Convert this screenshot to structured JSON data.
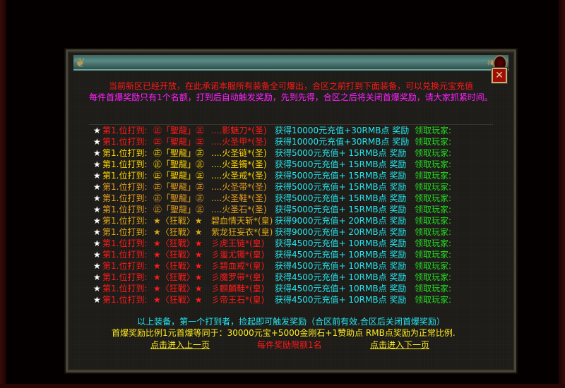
{
  "header": {
    "close_icon": "close-x-icon"
  },
  "notice": {
    "line1": "当前新区已经开放，在此承诺本服所有装备全可爆出，合区之前打到下面装备，可以兑换元宝充值",
    "line2": "每件首爆奖励只有1个名额，打到后自动触发奖励，先到先得，合区之后将关闭首爆奖励，请大家抓紧时间。"
  },
  "colors": {
    "red": "#ff1a1a",
    "yellow": "#ffd700",
    "orange": "#e8a020",
    "gold": "#e0a818",
    "cyan": "#22e6f0",
    "green": "#22dd22",
    "magenta": "#ff20ff"
  },
  "rows": [
    {
      "star": "★",
      "pos": "第1.位打到:",
      "tag": "㊣「聖龍」㊣",
      "item": "....影魅刀*(圣)",
      "reward": "获得10000元充值+30RMB点 奖励",
      "claim": "领取玩家:",
      "color": "#ff1a1a"
    },
    {
      "star": "★",
      "pos": "第1.位打到:",
      "tag": "㊣「聖龍」㊣",
      "item": "....火圣甲*(圣)",
      "reward": "获得10000元充值+30RMB点 奖励",
      "claim": "领取玩家:",
      "color": "#ff1a1a"
    },
    {
      "star": "★",
      "pos": "第1.位打到:",
      "tag": "㊣「聖龍」㊣",
      "item": "....火圣链*(圣)",
      "reward": "获得5000元充值+ 15RMB点 奖励",
      "claim": "领取玩家:",
      "color": "#ffd700"
    },
    {
      "star": "★",
      "pos": "第1.位打到:",
      "tag": "㊣「聖龍」㊣",
      "item": "....火圣镯*(圣)",
      "reward": "获得5000元充值+ 15RMB点 奖励",
      "claim": "领取玩家:",
      "color": "#ffd700"
    },
    {
      "star": "★",
      "pos": "第1.位打到:",
      "tag": "㊣「聖龍」㊣",
      "item": "....火圣戒*(圣)",
      "reward": "获得5000元充值+ 15RMB点 奖励",
      "claim": "领取玩家:",
      "color": "#ffd700"
    },
    {
      "star": "★",
      "pos": "第1.位打到:",
      "tag": "㊣「聖龍」㊣",
      "item": "....火圣带*(圣)",
      "reward": "获得5000元充值+ 15RMB点 奖励",
      "claim": "领取玩家:",
      "color": "#e8a020"
    },
    {
      "star": "★",
      "pos": "第1.位打到:",
      "tag": "㊣「聖龍」㊣",
      "item": "....火圣鞋*(圣)",
      "reward": "获得5000元充值+ 15RMB点 奖励",
      "claim": "领取玩家:",
      "color": "#e8a020"
    },
    {
      "star": "★",
      "pos": "第1.位打到:",
      "tag": "㊣「聖龍」㊣",
      "item": "....火圣石*(圣)",
      "reward": "获得5000元充值+ 15RMB点 奖励",
      "claim": "领取玩家:",
      "color": "#e8a020"
    },
    {
      "star": "★",
      "pos": "第1.位打到:",
      "tag": "★〈狂戰〉★",
      "item": "碧血情天斩*(皇)",
      "reward": "获得9000元充值+ 20RMB点 奖励",
      "claim": "领取玩家:",
      "color": "#e0a818"
    },
    {
      "star": "★",
      "pos": "第1.位打到:",
      "tag": "★〈狂戰〉★",
      "item": "紫龙狂妄衣*(皇)",
      "reward": "获得9000元充值+ 20RMB点 奖励",
      "claim": "领取玩家:",
      "color": "#e0a818"
    },
    {
      "star": "★",
      "pos": "第1.位打到:",
      "tag": "★〈狂戰〉★",
      "item": "彡虎王链*(皇)",
      "reward": "获得4500元充值+ 10RMB点 奖励",
      "claim": "领取玩家:",
      "color": "#ff1a1a"
    },
    {
      "star": "★",
      "pos": "第1.位打到:",
      "tag": "★〈狂戰〉★",
      "item": "彡蚩尤镯*(皇)",
      "reward": "获得4500元充值+ 10RMB点 奖励",
      "claim": "领取玩家:",
      "color": "#ff1a1a"
    },
    {
      "star": "★",
      "pos": "第1.位打到:",
      "tag": "★〈狂戰〉★",
      "item": "彡碧血戒*(皇)",
      "reward": "获得4500元充值+ 10RMB点 奖励",
      "claim": "领取玩家:",
      "color": "#ff1a1a"
    },
    {
      "star": "★",
      "pos": "第1.位打到:",
      "tag": "★〈狂戰〉★",
      "item": "彡魔罗带*(皇)",
      "reward": "获得4500元充值+ 10RMB点 奖励",
      "claim": "领取玩家:",
      "color": "#ff1a1a"
    },
    {
      "star": "★",
      "pos": "第1.位打到:",
      "tag": "★〈狂戰〉★",
      "item": "彡麒麟鞋*(皇)",
      "reward": "获得4500元充值+ 10RMB点 奖励",
      "claim": "领取玩家:",
      "color": "#ff1a1a"
    },
    {
      "star": "★",
      "pos": "第1.位打到:",
      "tag": "★〈狂戰〉★",
      "item": "彡帝王石*(皇)",
      "reward": "获得4500元充值+ 10RMB点 奖励",
      "claim": "领取玩家:",
      "color": "#ff1a1a"
    }
  ],
  "footer": {
    "line1": "以上装备，第一个打到者，捡起即可触发奖励（合区前有效.合区后关闭首爆奖励）",
    "line2": "首爆奖励比例1元首爆等同于：30000元宝+5000金刚石+1赞助点 RMB点奖励为正常比例.",
    "prev": "点击进入上一页",
    "limit": "每件奖励限额1名",
    "next": "点击进入下一页"
  }
}
